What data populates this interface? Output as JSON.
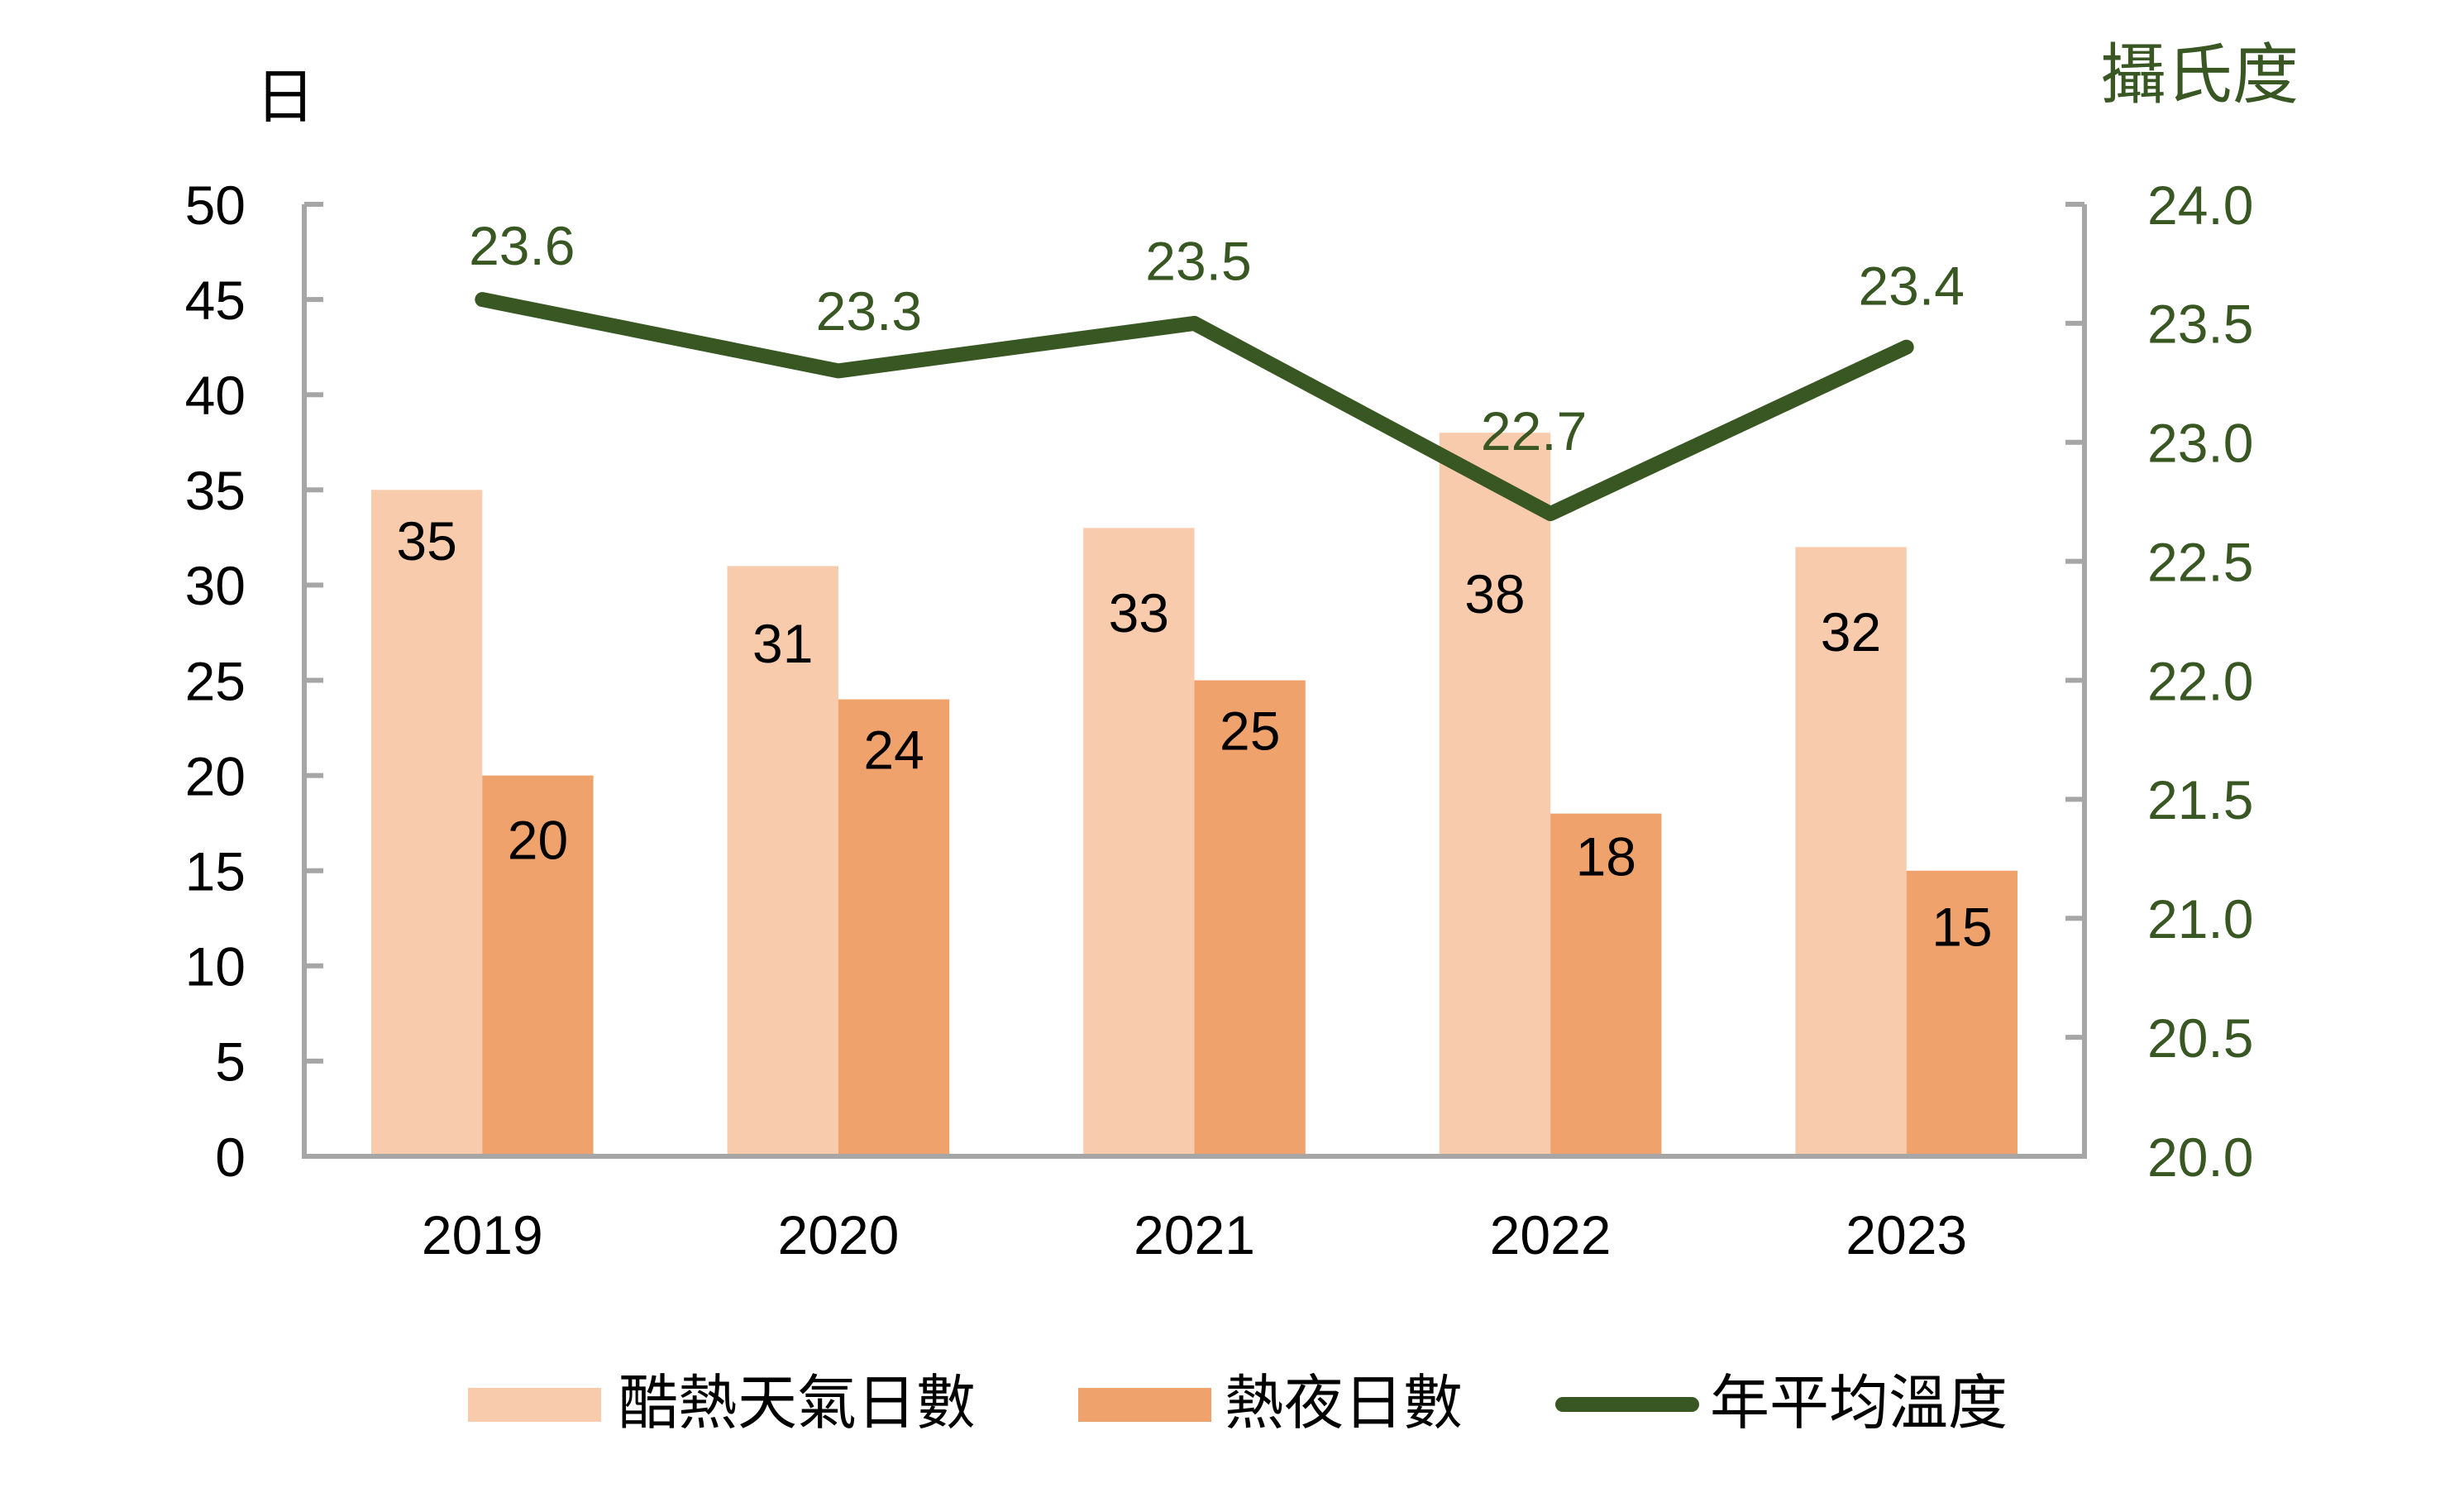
{
  "chart_data": {
    "type": "bar",
    "combo": "bar+line",
    "title": "",
    "categories": [
      "2019",
      "2020",
      "2021",
      "2022",
      "2023"
    ],
    "xlabel": "",
    "ylabel": "日",
    "y2label": "攝氏度",
    "ylim": [
      0,
      50
    ],
    "y2lim": [
      20,
      24
    ],
    "yticks": [
      "0",
      "5",
      "10",
      "15",
      "20",
      "25",
      "30",
      "35",
      "40",
      "45",
      "50"
    ],
    "y2ticks": [
      "20.0",
      "20.5",
      "21.0",
      "21.5",
      "22.0",
      "22.5",
      "23.0",
      "23.5",
      "24.0"
    ],
    "grid": false,
    "legend": "bottom",
    "series": [
      {
        "name": "酷熱天氣日數",
        "type": "bar",
        "axis": "left",
        "color": "#f8cbad",
        "values": [
          35,
          31,
          33,
          38,
          32
        ],
        "labels": [
          "35",
          "31",
          "33",
          "38",
          "32"
        ]
      },
      {
        "name": "熱夜日數",
        "type": "bar",
        "axis": "left",
        "color": "#f0a26c",
        "values": [
          20,
          24,
          25,
          18,
          15
        ],
        "labels": [
          "20",
          "24",
          "25",
          "18",
          "15"
        ]
      },
      {
        "name": "年平均溫度",
        "type": "line",
        "axis": "right",
        "color": "#395723",
        "values": [
          23.6,
          23.3,
          23.5,
          22.7,
          23.4
        ],
        "labels": [
          "23.6",
          "23.3",
          "23.5",
          "22.7",
          "23.4"
        ]
      }
    ]
  },
  "colors": {
    "axis": "#a6a6a6",
    "text": "#000000",
    "secondary_axis_text": "#395723"
  }
}
